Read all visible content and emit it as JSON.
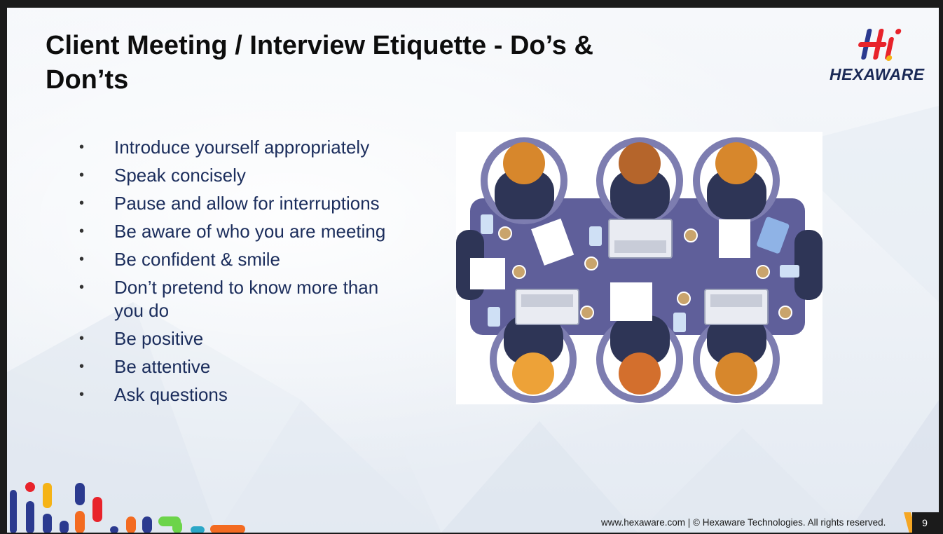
{
  "slide": {
    "title": "Client Meeting / Interview Etiquette - Do’s & Don’ts",
    "logo_text": "HEXAWARE",
    "bullet_glyph": "•",
    "bullets": [
      "Introduce yourself appropriately",
      "Speak concisely",
      "Pause and allow for interruptions",
      "Be aware of who you are meeting",
      "Be confident & smile",
      "Don’t pretend to know more than you do",
      "Be positive",
      "Be attentive",
      "Ask questions"
    ],
    "footer": "www.hexaware.com  | © Hexaware Technologies. All rights reserved.",
    "page_number": "9"
  },
  "colors": {
    "title": "#0d0d0d",
    "bullet_text": "#1b2d5c",
    "logo_red": "#e8232b",
    "logo_blue": "#2b3a8f",
    "logo_yellow": "#f5b316",
    "table": "#5f5f9a",
    "chair": "#7d7db0",
    "page_badge": "#1b1b1b",
    "page_accent": "#f5a623"
  }
}
